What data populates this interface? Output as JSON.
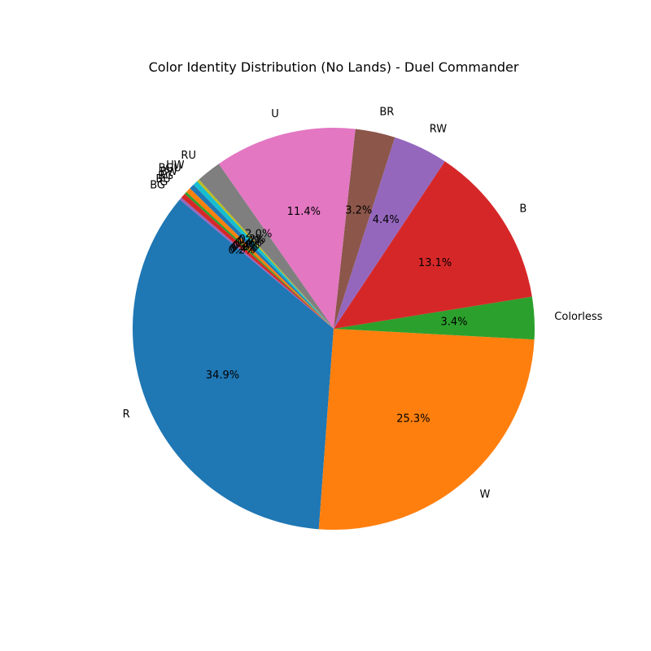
{
  "chart_data": {
    "type": "pie",
    "title": "Color Identity Distribution (No Lands) - Duel Commander",
    "start_angle_deg": 140,
    "direction": "counterclockwise",
    "slices": [
      {
        "label": "R",
        "value": 34.9,
        "pct_text": "34.9%",
        "color": "#1f77b4"
      },
      {
        "label": "W",
        "value": 25.3,
        "pct_text": "25.3%",
        "color": "#ff7f0e"
      },
      {
        "label": "Colorless",
        "value": 3.4,
        "pct_text": "3.4%",
        "color": "#2ca02c"
      },
      {
        "label": "B",
        "value": 13.1,
        "pct_text": "13.1%",
        "color": "#d62728"
      },
      {
        "label": "RW",
        "value": 4.4,
        "pct_text": "4.4%",
        "color": "#9467bd"
      },
      {
        "label": "BR",
        "value": 3.2,
        "pct_text": "3.2%",
        "color": "#8c564b"
      },
      {
        "label": "U",
        "value": 11.4,
        "pct_text": "11.4%",
        "color": "#e377c2"
      },
      {
        "label": "RU",
        "value": 2.0,
        "pct_text": "2.0%",
        "color": "#7f7f7f"
      },
      {
        "label": "UW",
        "value": 0.2,
        "pct_text": "0.2%",
        "color": "#bcbd22"
      },
      {
        "label": "BGU",
        "value": 0.4,
        "pct_text": "0.4%",
        "color": "#17becf"
      },
      {
        "label": "BW",
        "value": 0.4,
        "pct_text": "0.4%",
        "color": "#1f77b4"
      },
      {
        "label": "RG",
        "value": 0.4,
        "pct_text": "0.4%",
        "color": "#ff7f0e"
      },
      {
        "label": "BU",
        "value": 0.2,
        "pct_text": "0.2%",
        "color": "#2ca02c"
      },
      {
        "label": "G",
        "value": 0.4,
        "pct_text": "0.4%",
        "color": "#d62728"
      },
      {
        "label": "BG",
        "value": 0.2,
        "pct_text": "0.2%",
        "color": "#9467bd"
      }
    ]
  }
}
